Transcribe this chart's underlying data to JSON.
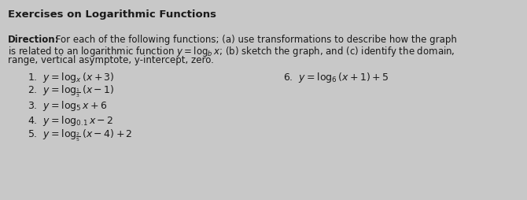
{
  "title": "Exercises on Logarithmic Functions",
  "direction_bold": "Direction:",
  "direction_rest": " For each of the following functions; (a) use transformations to describe how the graph",
  "direction_line2": "is related to an logarithmic function $y = \\log_b x$; (b) sketch the graph, and (c) identify the domain,",
  "direction_line3": "range, vertical asymptote, y-intercept, zero.",
  "item1": "1.  $y = \\log_{x}(x + 3)$",
  "item2": "2.  $y = \\log_{\\frac{1}{3}}(x - 1)$",
  "item3": "3.  $y = \\log_{5} x + 6$",
  "item4": "4.  $y = \\log_{0.1} x - 2$",
  "item5": "5.  $y = \\log_{\\frac{2}{5}}(x - 4) + 2$",
  "item6": "6.  $y = \\log_{6}(x + 1) + 5$",
  "bg_color": "#c8c8c8",
  "text_color": "#1a1a1a",
  "title_fontsize": 9.5,
  "body_fontsize": 8.5,
  "item_fontsize": 9.0
}
